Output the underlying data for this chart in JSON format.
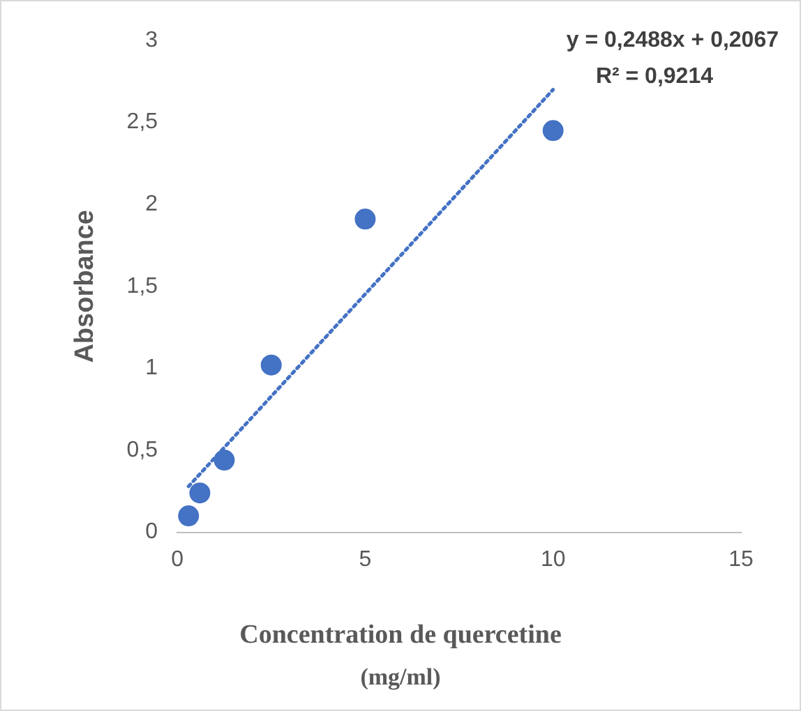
{
  "chart_data": {
    "type": "scatter",
    "xlabel": "Concentration de quercetine (mg/ml)",
    "ylabel": "Absorbance",
    "annotations": [
      "y = 0,2488x + 0,2067",
      "R² = 0,9214"
    ],
    "xlim": [
      0,
      15
    ],
    "xticks": [
      0,
      5,
      10,
      15
    ],
    "ylim": [
      0,
      3
    ],
    "yticks": [
      {
        "value": 0,
        "label": "0"
      },
      {
        "value": 0.5,
        "label": "0,5"
      },
      {
        "value": 1,
        "label": "1"
      },
      {
        "value": 1.5,
        "label": "1,5"
      },
      {
        "value": 2,
        "label": "2"
      },
      {
        "value": 2.5,
        "label": "2,5"
      },
      {
        "value": 3,
        "label": "3"
      }
    ],
    "marker": "circle",
    "series": [
      {
        "color": "#4472c4",
        "x": [
          0.3,
          0.6,
          1.25,
          2.5,
          5,
          10
        ],
        "values": [
          0.1,
          0.24,
          0.44,
          1.02,
          1.91,
          2.45
        ]
      },
      {
        "type": "line",
        "color": "#4472c4",
        "x": [
          0.3,
          10
        ],
        "values": [
          0.28,
          2.7
        ],
        "line_style": "dotted",
        "marker": "none"
      }
    ]
  }
}
